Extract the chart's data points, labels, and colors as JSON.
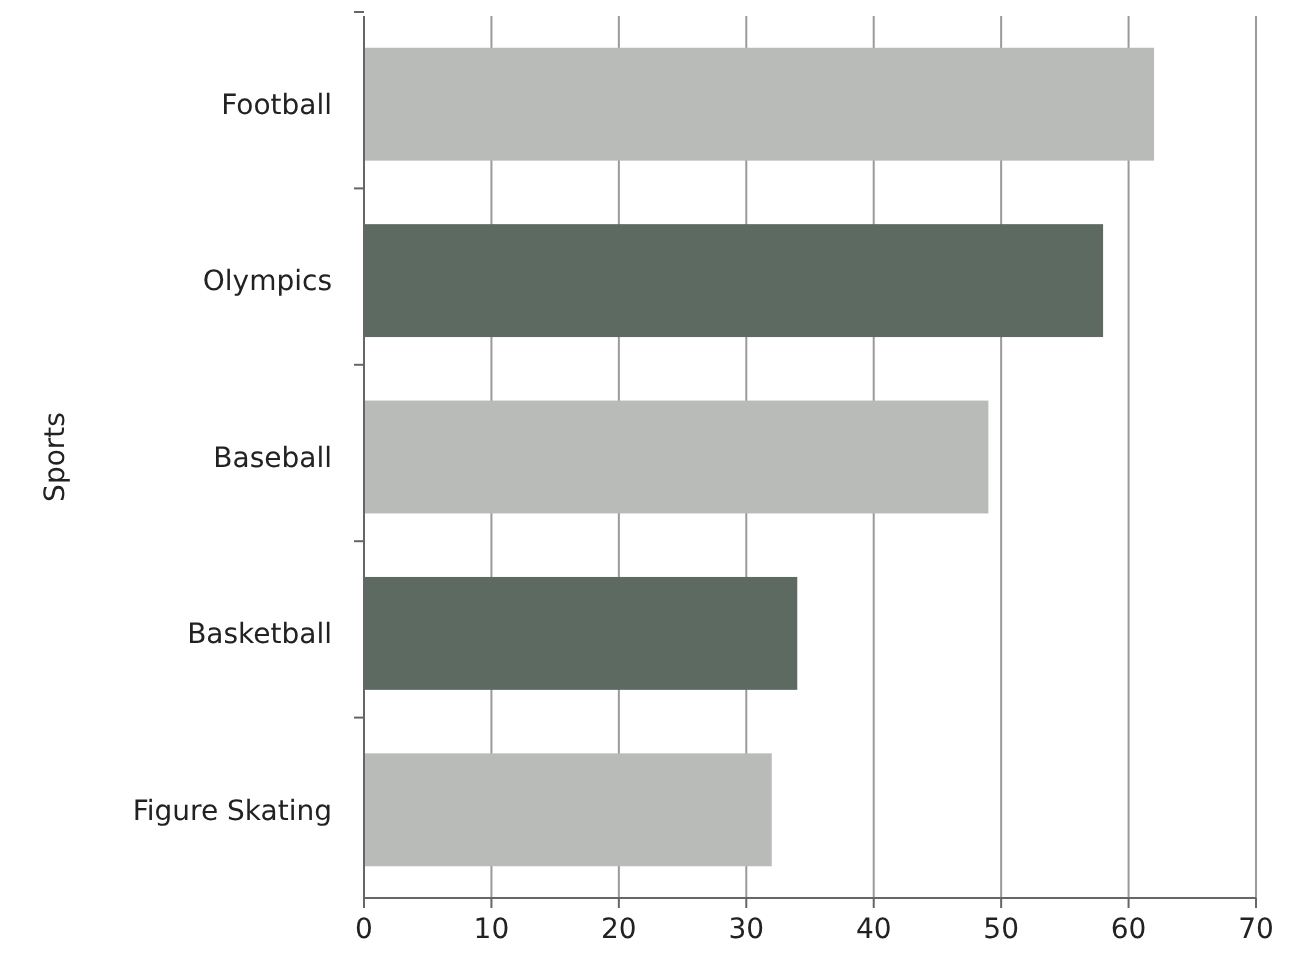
{
  "chart_data": {
    "type": "bar",
    "orientation": "horizontal",
    "ylabel": "Sports",
    "categories": [
      "Football",
      "Olympics",
      "Baseball",
      "Basketball",
      "Figure Skating"
    ],
    "values": [
      62,
      58,
      49,
      34,
      32
    ],
    "colors": [
      "#b9bbb9",
      "#5d6a61",
      "#b9bbb9",
      "#5d6a61",
      "#b9bbb9"
    ],
    "xlim": [
      0,
      70
    ],
    "xticks": [
      0,
      10,
      20,
      30,
      40,
      50,
      60,
      70
    ],
    "grid": "x"
  }
}
